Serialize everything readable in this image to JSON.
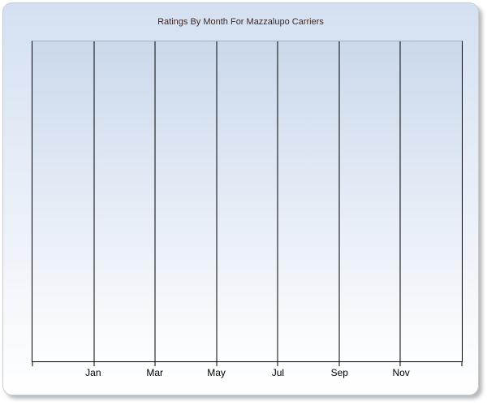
{
  "panel": {
    "title": "Ratings By Month For Mazzalupo Carriers"
  },
  "colors": {
    "title_text": "#3c2a28",
    "panel_gradient_top": "#d4e0f1",
    "panel_gradient_bottom": "#ffffff",
    "plot_gradient_top": "#cbd9ec",
    "plot_gradient_bottom": "#fdfeff",
    "plot_top_border": "#a4b0c4",
    "gridline": "#000000",
    "axis_line": "#000000",
    "tick_label_text": "#000000"
  },
  "chart_data": {
    "type": "line",
    "title": "Ratings By Month For Mazzalupo Carriers",
    "categories": [
      "Jan",
      "Mar",
      "May",
      "Jul",
      "Sep",
      "Nov"
    ],
    "series": [],
    "plot_state": "empty - no data series rendered",
    "xlabel": "",
    "ylabel": "",
    "y_tick_labels": [],
    "grid": "vertical gridlines only; 8 vertical lines including plot edges, labels centered on interior gridlines",
    "legend": "none"
  }
}
